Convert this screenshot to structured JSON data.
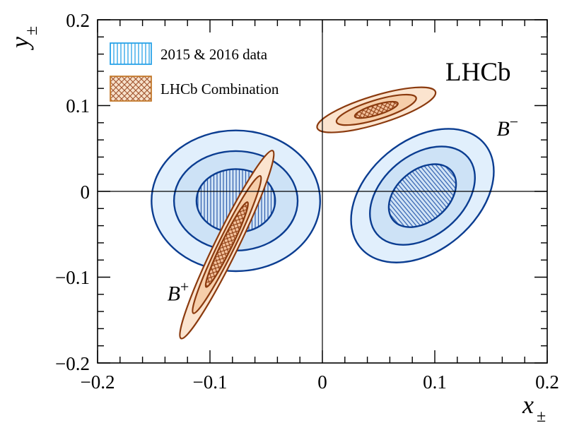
{
  "chart_data": {
    "type": "contour",
    "xlabel": "x",
    "xlabel_sub": "±",
    "ylabel": "y",
    "ylabel_sub": "±",
    "xlim": [
      -0.2,
      0.2
    ],
    "ylim": [
      -0.2,
      0.2
    ],
    "x_ticks": [
      -0.2,
      -0.1,
      0,
      0.1,
      0.2
    ],
    "y_ticks": [
      -0.2,
      -0.1,
      0,
      0.1,
      0.2
    ],
    "x_tick_labels": [
      "−0.2",
      "−0.1",
      "0",
      "0.1",
      "0.2"
    ],
    "y_tick_labels": [
      "−0.2",
      "−0.1",
      "0",
      "0.1",
      "0.2"
    ],
    "experiment_label": "LHCb",
    "legend": [
      {
        "label": "2015 & 2016 data",
        "pattern": "vertical-hatch",
        "color": "#2aa3e8"
      },
      {
        "label": "LHCb Combination",
        "pattern": "cross-hatch",
        "color": "#b5651d"
      }
    ],
    "annotations": [
      {
        "text": "B",
        "sup": "+",
        "x": -0.138,
        "y": -0.127
      },
      {
        "text": "B",
        "sup": "−",
        "x": 0.155,
        "y": 0.065
      }
    ],
    "series": [
      {
        "name": "2015 & 2016 data",
        "particle": "B+",
        "center": [
          -0.077,
          -0.011
        ],
        "contours": [
          {
            "level": 3,
            "rx": 0.075,
            "ry": 0.082,
            "angle_deg": 0
          },
          {
            "level": 2,
            "rx": 0.055,
            "ry": 0.058,
            "angle_deg": 0
          },
          {
            "level": 1,
            "rx": 0.035,
            "ry": 0.037,
            "angle_deg": 0
          }
        ]
      },
      {
        "name": "2015 & 2016 data",
        "particle": "B-",
        "center": [
          0.089,
          -0.005
        ],
        "contours": [
          {
            "level": 3,
            "rx": 0.072,
            "ry": 0.064,
            "angle_deg": -40
          },
          {
            "level": 2,
            "rx": 0.053,
            "ry": 0.047,
            "angle_deg": -40
          },
          {
            "level": 1,
            "rx": 0.034,
            "ry": 0.03,
            "angle_deg": -40
          }
        ]
      },
      {
        "name": "LHCb Combination",
        "particle": "B+",
        "center": [
          -0.085,
          -0.062
        ],
        "contours": [
          {
            "level": 3,
            "rx": 0.093,
            "ry": 0.0135,
            "angle_deg": -64
          },
          {
            "level": 2,
            "rx": 0.068,
            "ry": 0.0095,
            "angle_deg": -64
          },
          {
            "level": 1,
            "rx": 0.042,
            "ry": 0.0062,
            "angle_deg": -64
          }
        ]
      },
      {
        "name": "LHCb Combination",
        "particle": "B-",
        "center": [
          0.048,
          0.095
        ],
        "contours": [
          {
            "level": 3,
            "rx": 0.055,
            "ry": 0.0165,
            "angle_deg": -17
          },
          {
            "level": 2,
            "rx": 0.037,
            "ry": 0.0112,
            "angle_deg": -17
          },
          {
            "level": 1,
            "rx": 0.02,
            "ry": 0.006,
            "angle_deg": -17
          }
        ]
      }
    ],
    "colors": {
      "data_fill": [
        "#e1effc",
        "#cde2f6",
        "#d2e4f6"
      ],
      "data_line": "#0b3d91",
      "data_hatch": "#2d5dae",
      "comb_fill": [
        "#fbe4cf",
        "#f6ceaa",
        "#f3c09b"
      ],
      "comb_line": "#8b3a0e",
      "comb_hatch": "#8b3a0e"
    }
  }
}
